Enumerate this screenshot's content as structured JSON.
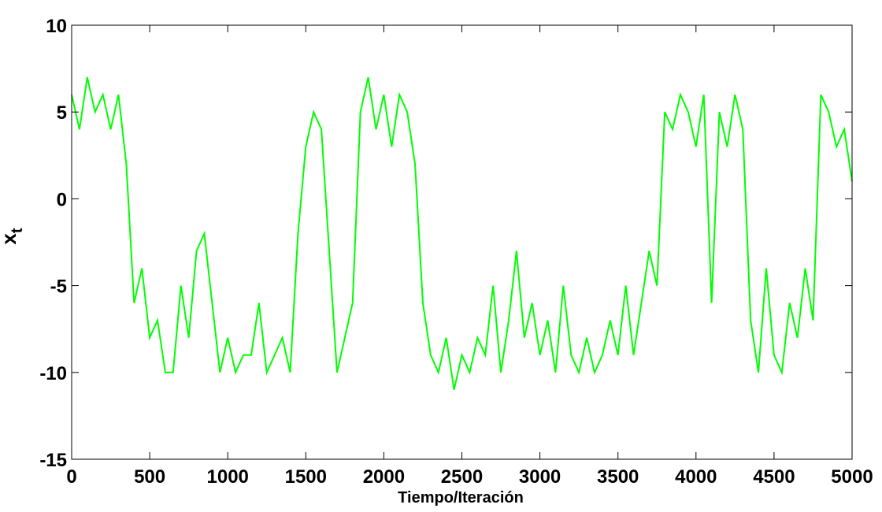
{
  "chart_data": {
    "type": "line",
    "xlabel": "Tiempo/Iteración",
    "ylabel": "x",
    "ylabel_subscript": "t",
    "color": "#00ff00",
    "x": [
      0,
      50,
      100,
      150,
      200,
      250,
      300,
      350,
      400,
      450,
      500,
      550,
      600,
      650,
      700,
      750,
      800,
      850,
      900,
      950,
      1000,
      1050,
      1100,
      1150,
      1200,
      1250,
      1300,
      1350,
      1400,
      1450,
      1500,
      1550,
      1600,
      1650,
      1700,
      1750,
      1800,
      1850,
      1900,
      1950,
      2000,
      2050,
      2100,
      2150,
      2200,
      2250,
      2300,
      2350,
      2400,
      2450,
      2500,
      2550,
      2600,
      2650,
      2700,
      2750,
      2800,
      2850,
      2900,
      2950,
      3000,
      3050,
      3100,
      3150,
      3200,
      3250,
      3300,
      3350,
      3400,
      3450,
      3500,
      3550,
      3600,
      3650,
      3700,
      3750,
      3800,
      3850,
      3900,
      3950,
      4000,
      4050,
      4100,
      4150,
      4200,
      4250,
      4300,
      4350,
      4400,
      4450,
      4500,
      4550,
      4600,
      4650,
      4700,
      4750,
      4800,
      4850,
      4900,
      4950,
      5000
    ],
    "values": [
      6,
      4,
      7,
      5,
      6,
      4,
      6,
      2,
      -6,
      -4,
      -8,
      -7,
      -10,
      -10,
      -5,
      -8,
      -3,
      -2,
      -6,
      -10,
      -8,
      -10,
      -9,
      -9,
      -6,
      -10,
      -9,
      -8,
      -10,
      -2,
      3,
      5,
      4,
      -3,
      -10,
      -8,
      -6,
      5,
      7,
      4,
      6,
      3,
      6,
      5,
      2,
      -6,
      -9,
      -10,
      -8,
      -11,
      -9,
      -10,
      -8,
      -9,
      -5,
      -10,
      -7,
      -3,
      -8,
      -6,
      -9,
      -7,
      -10,
      -5,
      -9,
      -10,
      -8,
      -10,
      -9,
      -7,
      -9,
      -5,
      -9,
      -6,
      -3,
      -5,
      5,
      4,
      6,
      5,
      3,
      6,
      -6,
      5,
      3,
      6,
      4,
      -7,
      -10,
      -4,
      -9,
      -10,
      -6,
      -8,
      -4,
      -7,
      6,
      5,
      3,
      4,
      1
    ],
    "xlim": [
      0,
      5000
    ],
    "xticks": [
      0,
      500,
      1000,
      1500,
      2000,
      2500,
      3000,
      3500,
      4000,
      4500,
      5000
    ],
    "ylim": [
      -15,
      10
    ],
    "yticks": [
      -15,
      -10,
      -5,
      0,
      5,
      10
    ]
  }
}
